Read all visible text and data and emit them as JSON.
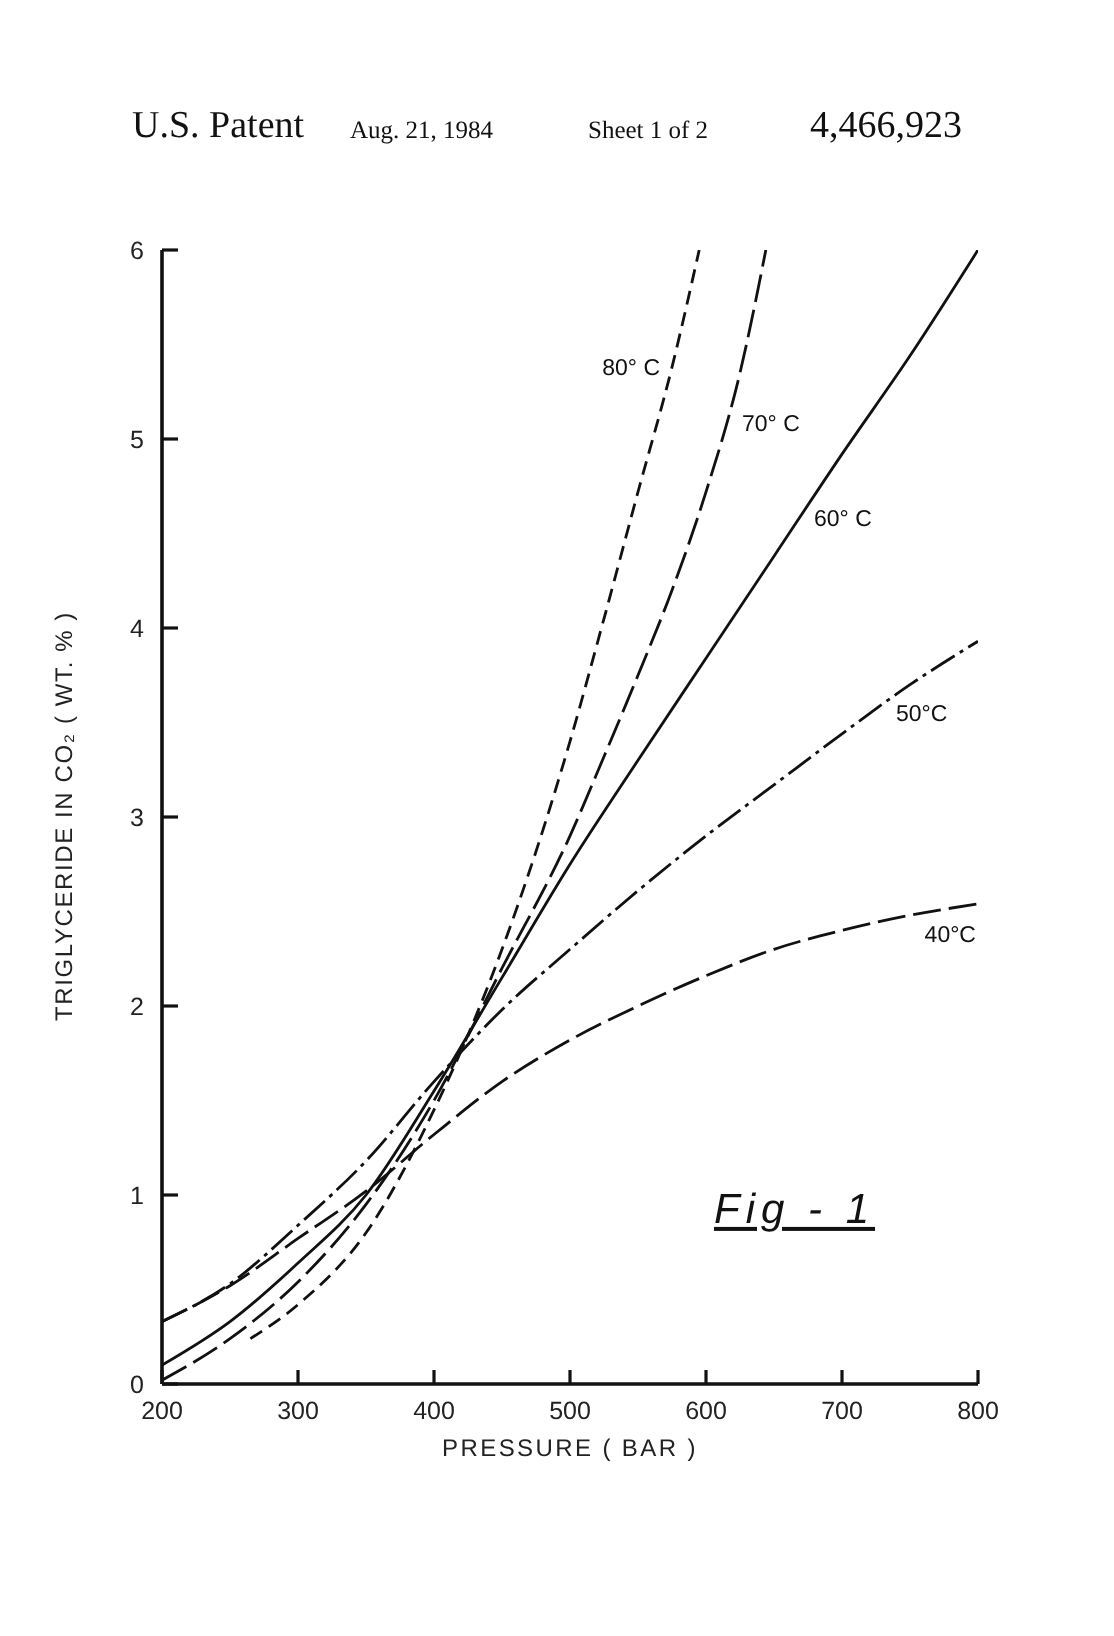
{
  "chart_data": {
    "type": "line",
    "annotations": [
      "U.S. Patent",
      "Aug. 21, 1984",
      "Sheet 1 of 2",
      "4,466,923",
      "Fig - 1"
    ],
    "xlabel": "PRESSURE ( BAR )",
    "ylabel": "TRIGLYCERIDE IN CO₂ ( WT. % )",
    "xlim": [
      200,
      800
    ],
    "ylim": [
      0,
      6
    ],
    "xticks": [
      200,
      300,
      400,
      500,
      600,
      700,
      800
    ],
    "yticks": [
      0,
      1,
      2,
      3,
      4,
      5,
      6
    ],
    "grid": false,
    "legend": false,
    "marker": "none",
    "series": [
      {
        "name": "40°C",
        "color": "#111111",
        "line_style": "longdash",
        "x": [
          200,
          250,
          300,
          350,
          400,
          450,
          500,
          550,
          600,
          650,
          700,
          750,
          800
        ],
        "values": [
          0.33,
          0.52,
          0.77,
          1.02,
          1.32,
          1.6,
          1.82,
          2.0,
          2.16,
          2.3,
          2.4,
          2.48,
          2.54
        ]
      },
      {
        "name": "50°C",
        "color": "#111111",
        "line_style": "dashdot",
        "x": [
          200,
          250,
          300,
          350,
          400,
          450,
          500,
          550,
          600,
          650,
          700,
          750,
          800
        ],
        "values": [
          0.33,
          0.53,
          0.84,
          1.18,
          1.6,
          1.98,
          2.3,
          2.61,
          2.9,
          3.17,
          3.44,
          3.7,
          3.93
        ]
      },
      {
        "name": "60° C",
        "color": "#111111",
        "line_style": "solid",
        "x": [
          200,
          250,
          300,
          350,
          400,
          450,
          500,
          550,
          600,
          650,
          700,
          750,
          800
        ],
        "values": [
          0.1,
          0.33,
          0.64,
          1.0,
          1.55,
          2.15,
          2.75,
          3.3,
          3.84,
          4.38,
          4.92,
          5.44,
          6.0
        ]
      },
      {
        "name": "70° C",
        "color": "#111111",
        "line_style": "longdash",
        "x": [
          200,
          250,
          300,
          350,
          400,
          450,
          500,
          525,
          550,
          575,
          600,
          625,
          644
        ],
        "values": [
          0.02,
          0.24,
          0.54,
          0.95,
          1.5,
          2.2,
          2.9,
          3.32,
          3.75,
          4.2,
          4.72,
          5.35,
          6.0
        ]
      },
      {
        "name": "80° C",
        "color": "#111111",
        "line_style": "dashed",
        "x": [
          265,
          300,
          350,
          400,
          450,
          500,
          525,
          550,
          575,
          595
        ],
        "values": [
          0.24,
          0.42,
          0.8,
          1.45,
          2.3,
          3.4,
          4.05,
          4.72,
          5.38,
          6.0
        ]
      }
    ]
  }
}
